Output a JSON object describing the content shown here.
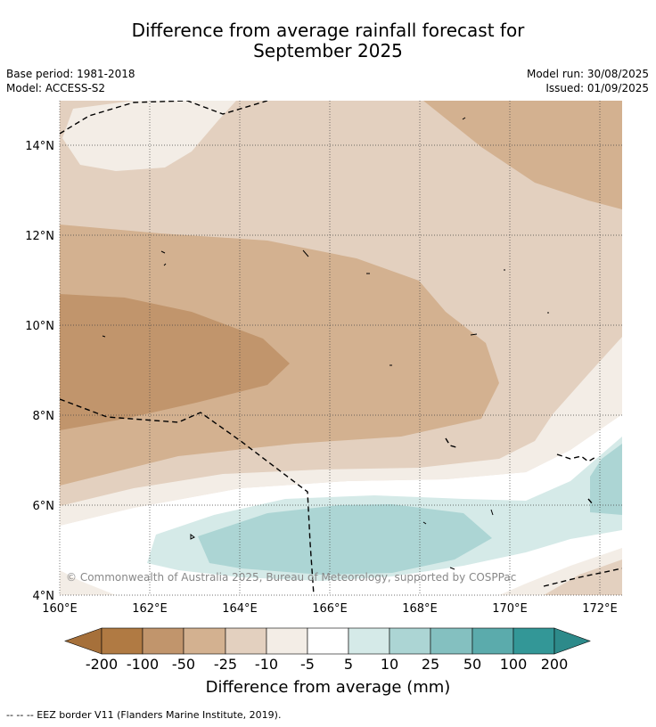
{
  "title_line1": "Difference from average rainfall forecast for",
  "title_line2": "September 2025",
  "base_period": "Base period: 1981-2018",
  "model": "Model: ACCESS-S2",
  "model_run": "Model run: 30/08/2025",
  "issued": "Issued: 01/09/2025",
  "copyright": "© Commonwealth of Australia 2025, Bureau of Meteorology, supported by COSPPac",
  "lat_ticks": [
    "14°N",
    "12°N",
    "10°N",
    "8°N",
    "6°N",
    "4°N"
  ],
  "lon_ticks": [
    "160°E",
    "162°E",
    "164°E",
    "166°E",
    "168°E",
    "170°E",
    "172°E"
  ],
  "colorbar": {
    "title": "Difference from average (mm)",
    "labels": [
      "-200",
      "-100",
      "-50",
      "-25",
      "-10",
      "-5",
      "5",
      "10",
      "25",
      "50",
      "100",
      "200"
    ],
    "colors": [
      "#a6703a",
      "#b07a43",
      "#c1956c",
      "#d3b190",
      "#e3d0bf",
      "#f3ede6",
      "#ffffff",
      "#d5eae8",
      "#acd5d4",
      "#84c0c0",
      "#5babac",
      "#339797",
      "#2d8a8a"
    ]
  },
  "footnote": "-- -- -- EEZ border V11 (Flanders Marine Institute, 2019)."
}
